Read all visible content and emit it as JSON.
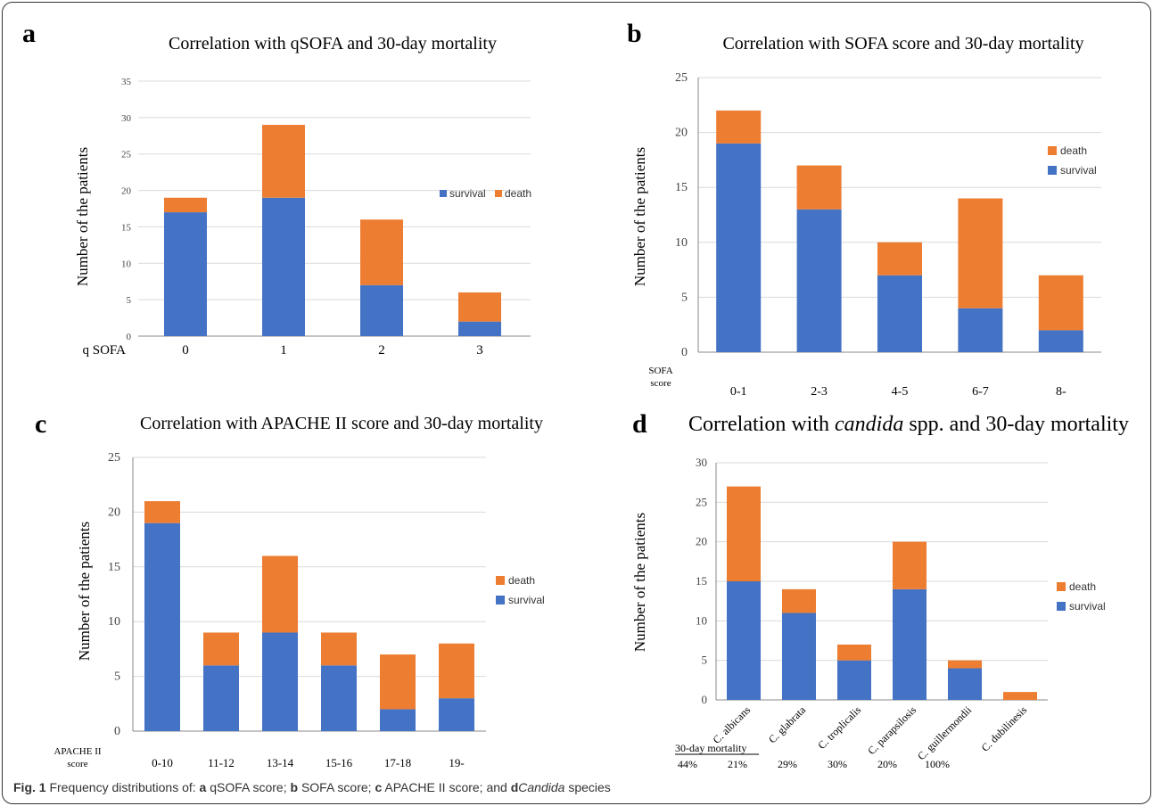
{
  "caption": {
    "prefix": "Fig. 1",
    "text_1": " Frequency distributions of: ",
    "a": "a",
    "text_a": " qSOFA score; ",
    "b": "b",
    "text_b": " SOFA score; ",
    "c": "c",
    "text_c": " APACHE II score; and ",
    "d": "d",
    "text_d_italic": "Candida",
    "text_d": " species"
  },
  "colors": {
    "survival": "#4472C4",
    "death": "#ED7D31",
    "grid": "#d9d9d9",
    "axis": "#888888"
  },
  "chart_data": [
    {
      "panel": "a",
      "type": "bar",
      "stacked": true,
      "title": "Correlation with qSOFA and 30-day mortality",
      "ylabel": "Number of the patients",
      "xlabel": "q SOFA",
      "categories": [
        "0",
        "1",
        "2",
        "3"
      ],
      "ylim": [
        0,
        35
      ],
      "yticks": [
        0,
        5,
        10,
        15,
        20,
        25,
        30,
        35
      ],
      "series": [
        {
          "name": "survival",
          "values": [
            17,
            19,
            7,
            2
          ]
        },
        {
          "name": "death",
          "values": [
            2,
            10,
            9,
            4
          ]
        }
      ],
      "grid": true,
      "legend": "right-horizontal"
    },
    {
      "panel": "b",
      "type": "bar",
      "stacked": true,
      "title": "Correlation with SOFA score and 30-day mortality",
      "ylabel": "Number of the patients",
      "xlabel_lines": [
        "SOFA",
        "score"
      ],
      "categories": [
        "0-1",
        "2-3",
        "4-5",
        "6-7",
        "8-"
      ],
      "ylim": [
        0,
        25
      ],
      "yticks": [
        0,
        5,
        10,
        15,
        20,
        25
      ],
      "series": [
        {
          "name": "survival",
          "values": [
            19,
            13,
            7,
            4,
            2
          ]
        },
        {
          "name": "death",
          "values": [
            3,
            4,
            3,
            10,
            5
          ]
        }
      ],
      "grid": true,
      "legend": "right"
    },
    {
      "panel": "c",
      "type": "bar",
      "stacked": true,
      "title": "Correlation with APACHE II score and 30-day mortality",
      "ylabel": "Number of the patients",
      "xlabel_lines": [
        "APACHE II",
        "score"
      ],
      "categories": [
        "0-10",
        "11-12",
        "13-14",
        "15-16",
        "17-18",
        "19-"
      ],
      "ylim": [
        0,
        25
      ],
      "yticks": [
        0,
        5,
        10,
        15,
        20,
        25
      ],
      "series": [
        {
          "name": "survival",
          "values": [
            19,
            6,
            9,
            6,
            2,
            3
          ]
        },
        {
          "name": "death",
          "values": [
            2,
            3,
            7,
            3,
            5,
            5
          ]
        }
      ],
      "grid": true,
      "legend": "right"
    },
    {
      "panel": "d",
      "type": "bar",
      "stacked": true,
      "title_before": "Correlation with ",
      "title_italic": "candida",
      "title_after": " spp. and 30-day mortality",
      "ylabel": "Number of the patients",
      "categories": [
        "C. albicans",
        "C. glabrata",
        "C. troplicalis",
        "C. parapsilosis",
        "C. guillermondii",
        "C. dubilinesis"
      ],
      "ylim": [
        0,
        30
      ],
      "yticks": [
        0,
        5,
        10,
        15,
        20,
        25,
        30
      ],
      "series": [
        {
          "name": "survival",
          "values": [
            15,
            11,
            5,
            14,
            4,
            0
          ]
        },
        {
          "name": "death",
          "values": [
            12,
            3,
            2,
            6,
            1,
            1
          ]
        }
      ],
      "mortality_label": "30-day mortality",
      "mortality": [
        "44%",
        "21%",
        "29%",
        "30%",
        "20%",
        "100%"
      ],
      "grid": true,
      "legend": "right"
    }
  ]
}
